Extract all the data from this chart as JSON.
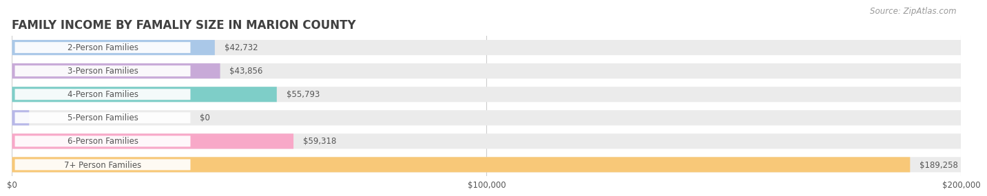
{
  "title": "FAMILY INCOME BY FAMALIY SIZE IN MARION COUNTY",
  "source": "Source: ZipAtlas.com",
  "categories": [
    "2-Person Families",
    "3-Person Families",
    "4-Person Families",
    "5-Person Families",
    "6-Person Families",
    "7+ Person Families"
  ],
  "values": [
    42732,
    43856,
    55793,
    0,
    59318,
    189258
  ],
  "value_labels": [
    "$42,732",
    "$43,856",
    "$55,793",
    "$0",
    "$59,318",
    "$189,258"
  ],
  "bar_colors": [
    "#aac8e8",
    "#c8aad8",
    "#7ecec8",
    "#b8b8e8",
    "#f8a8c8",
    "#f8c878"
  ],
  "bar_bg_color": "#ebebeb",
  "xlim": [
    0,
    200000
  ],
  "xticks": [
    0,
    100000,
    200000
  ],
  "xtick_labels": [
    "$0",
    "$100,000",
    "$200,000"
  ],
  "background_color": "#ffffff",
  "title_fontsize": 12,
  "bar_height": 0.65,
  "label_fontsize": 8.5,
  "value_fontsize": 8.5,
  "source_fontsize": 8.5,
  "title_color": "#404040",
  "label_color": "#555555",
  "value_color": "#555555",
  "source_color": "#999999",
  "grid_color": "#cccccc"
}
